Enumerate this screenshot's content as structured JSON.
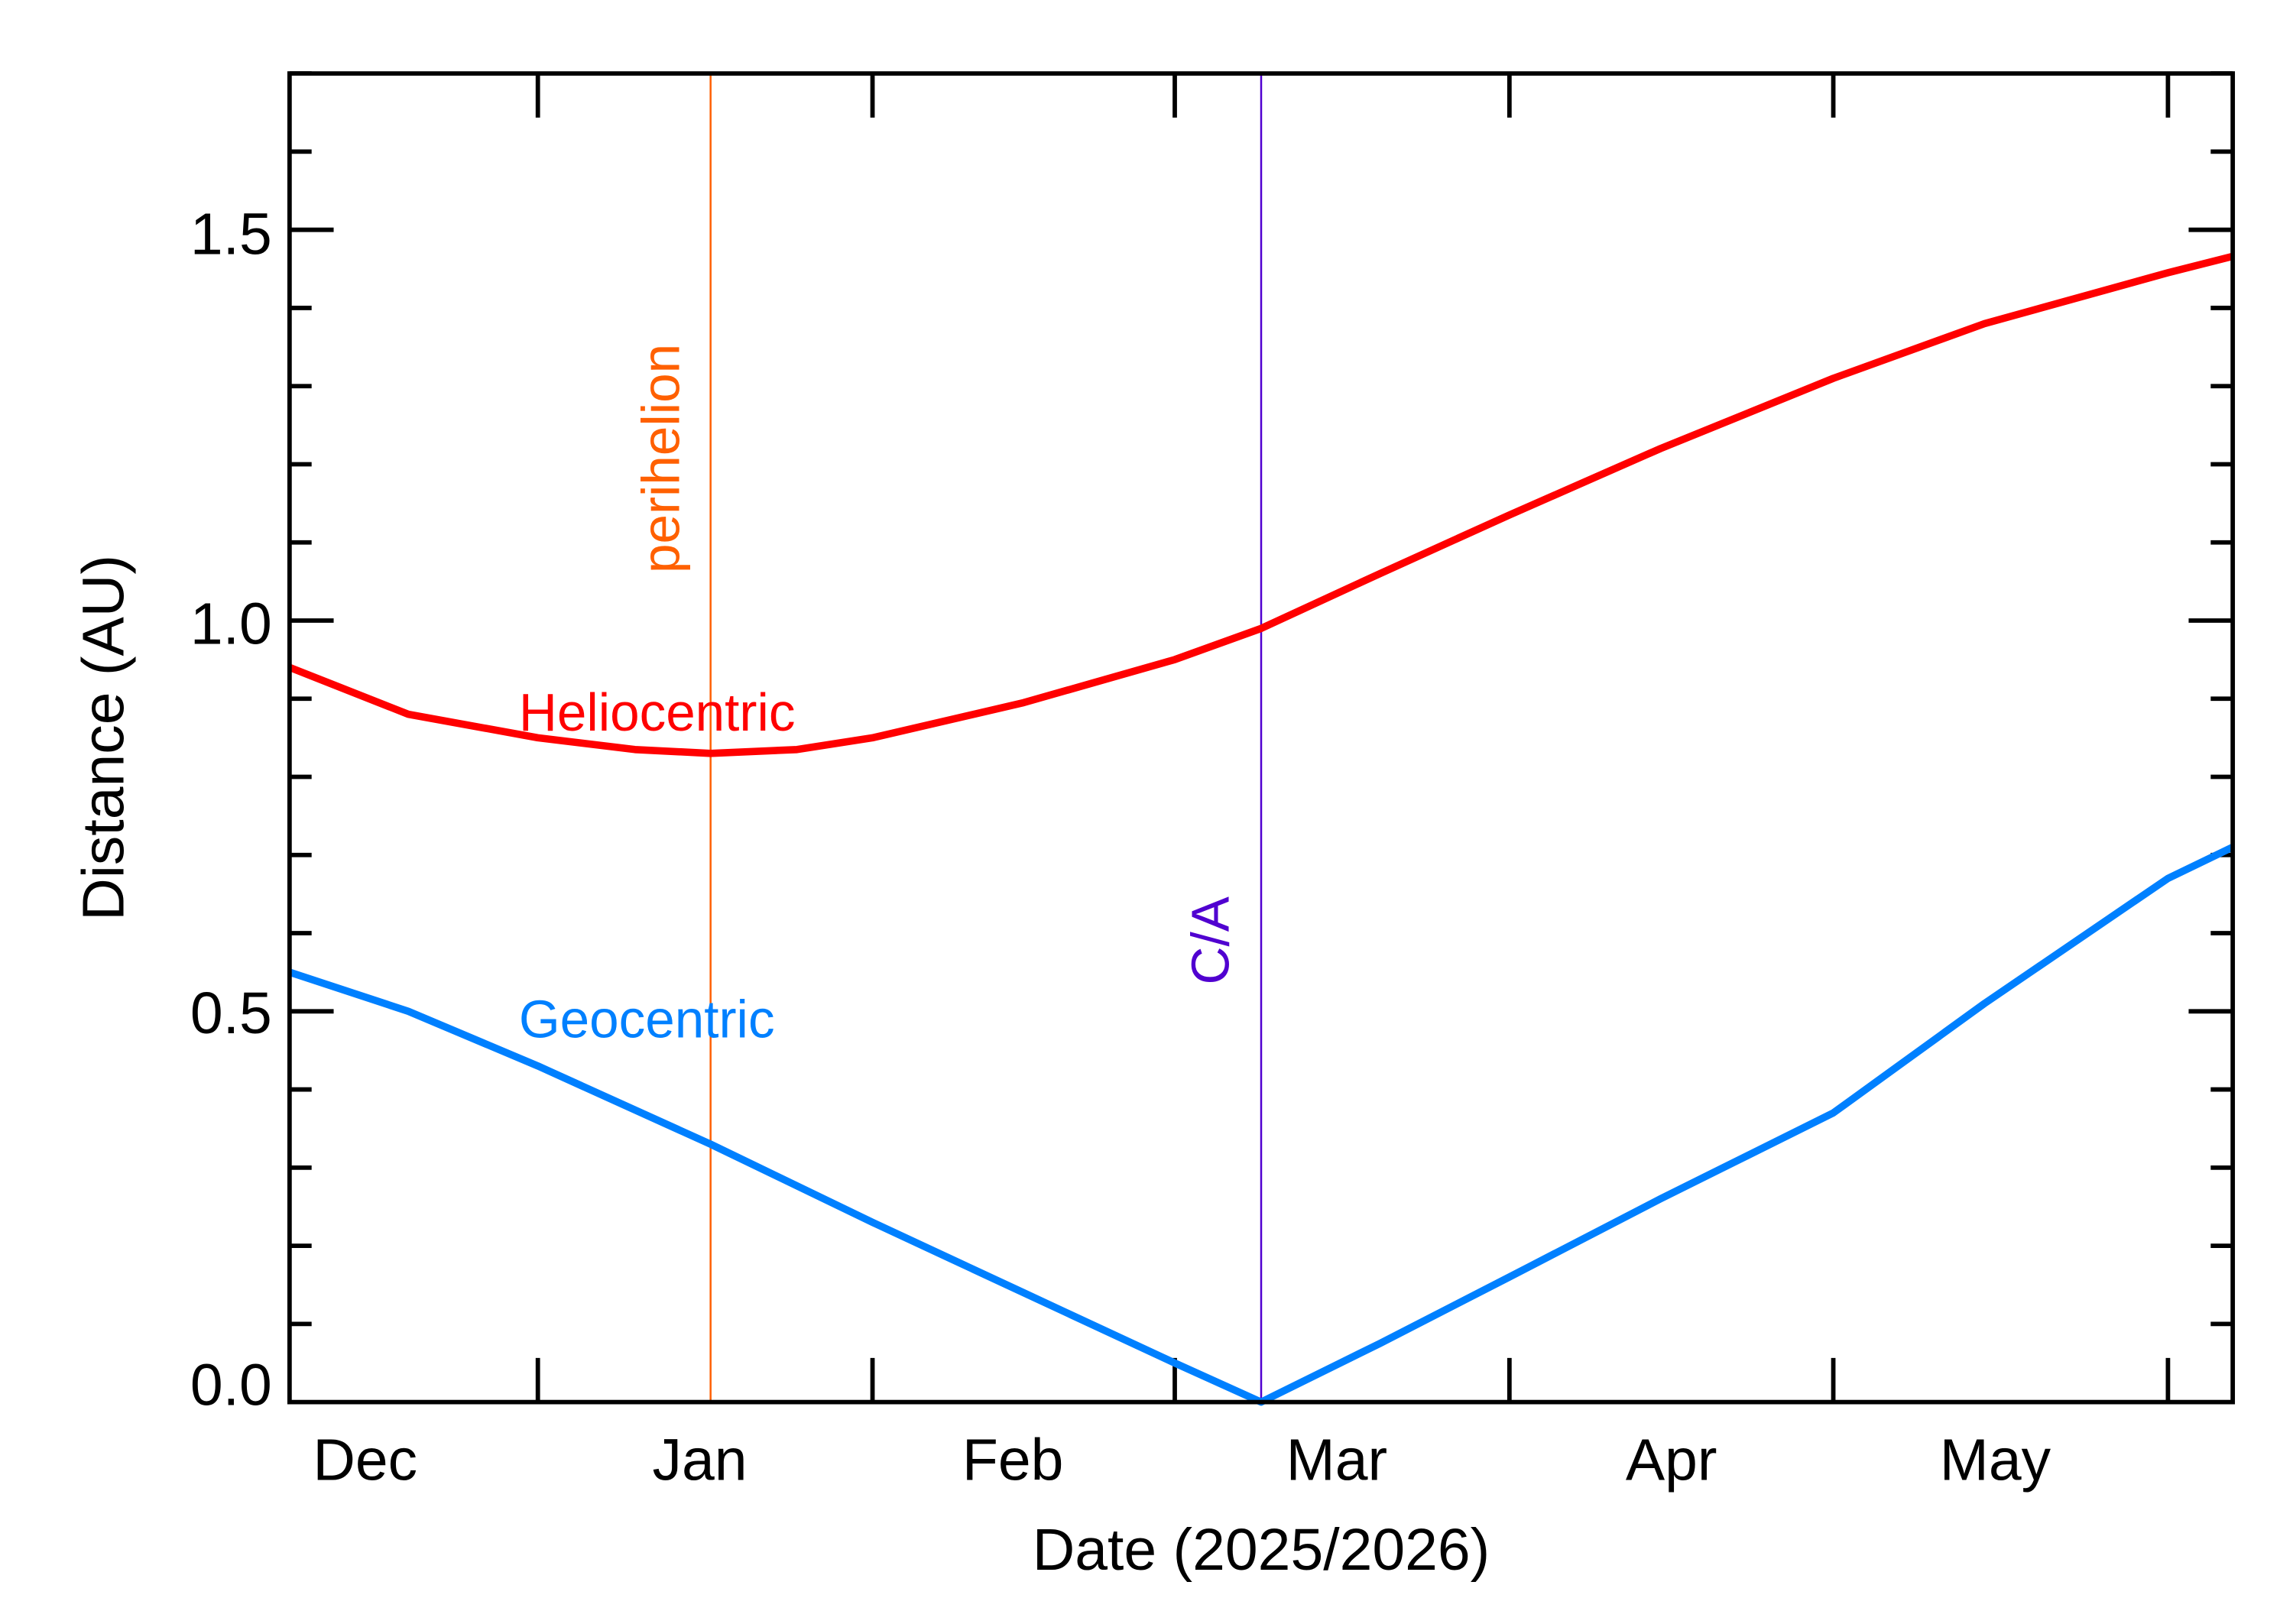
{
  "chart_data": {
    "type": "line",
    "xlabel": "Date (2025/2026)",
    "ylabel": "Distance (AU)",
    "xlim": [
      "2025-12-09",
      "2026-06-07"
    ],
    "ylim": [
      0,
      1.7
    ],
    "grid": false,
    "x_ticks": [
      "2026-01-01",
      "2026-02-01",
      "2026-03-01",
      "2026-04-01",
      "2026-05-01",
      "2026-06-01"
    ],
    "x_tick_labels": [
      {
        "label": "Dec",
        "date": "2025-12-16"
      },
      {
        "label": "Jan",
        "date": "2026-01-16"
      },
      {
        "label": "Feb",
        "date": "2026-02-14"
      },
      {
        "label": "Mar",
        "date": "2026-03-16"
      },
      {
        "label": "Apr",
        "date": "2026-04-16"
      },
      {
        "label": "May",
        "date": "2026-05-16"
      }
    ],
    "y_ticks": [
      0,
      0.5,
      1.0,
      1.5
    ],
    "y_tick_labels": [
      "0.0",
      "0.5",
      "1.0",
      "1.5"
    ],
    "series": [
      {
        "name": "Heliocentric",
        "color": "#ff0000",
        "points": [
          [
            "2025-12-09",
            0.94
          ],
          [
            "2025-12-20",
            0.88
          ],
          [
            "2026-01-01",
            0.85
          ],
          [
            "2026-01-10",
            0.835
          ],
          [
            "2026-01-17",
            0.83
          ],
          [
            "2026-01-25",
            0.835
          ],
          [
            "2026-02-01",
            0.85
          ],
          [
            "2026-02-15",
            0.895
          ],
          [
            "2026-03-01",
            0.95
          ],
          [
            "2026-03-09",
            0.99
          ],
          [
            "2026-03-20",
            1.06
          ],
          [
            "2026-04-01",
            1.135
          ],
          [
            "2026-04-15",
            1.22
          ],
          [
            "2026-05-01",
            1.31
          ],
          [
            "2026-05-15",
            1.38
          ],
          [
            "2026-06-01",
            1.445
          ],
          [
            "2026-06-07",
            1.466
          ]
        ]
      },
      {
        "name": "Geocentric",
        "color": "#0080ff",
        "points": [
          [
            "2025-12-09",
            0.55
          ],
          [
            "2025-12-20",
            0.5
          ],
          [
            "2026-01-01",
            0.43
          ],
          [
            "2026-01-17",
            0.33
          ],
          [
            "2026-02-01",
            0.23
          ],
          [
            "2026-02-15",
            0.14
          ],
          [
            "2026-03-01",
            0.05
          ],
          [
            "2026-03-09",
            0.0
          ],
          [
            "2026-03-20",
            0.075
          ],
          [
            "2026-04-01",
            0.16
          ],
          [
            "2026-04-15",
            0.26
          ],
          [
            "2026-05-01",
            0.37
          ],
          [
            "2026-05-15",
            0.51
          ],
          [
            "2026-06-01",
            0.67
          ],
          [
            "2026-06-07",
            0.71
          ]
        ]
      }
    ],
    "annotations": [
      {
        "text": "perihelion",
        "date": "2026-01-17",
        "color": "#ff6000",
        "type": "vertical-line"
      },
      {
        "text": "C/A",
        "date": "2026-03-09",
        "color": "#5000d0",
        "type": "vertical-line"
      }
    ]
  }
}
